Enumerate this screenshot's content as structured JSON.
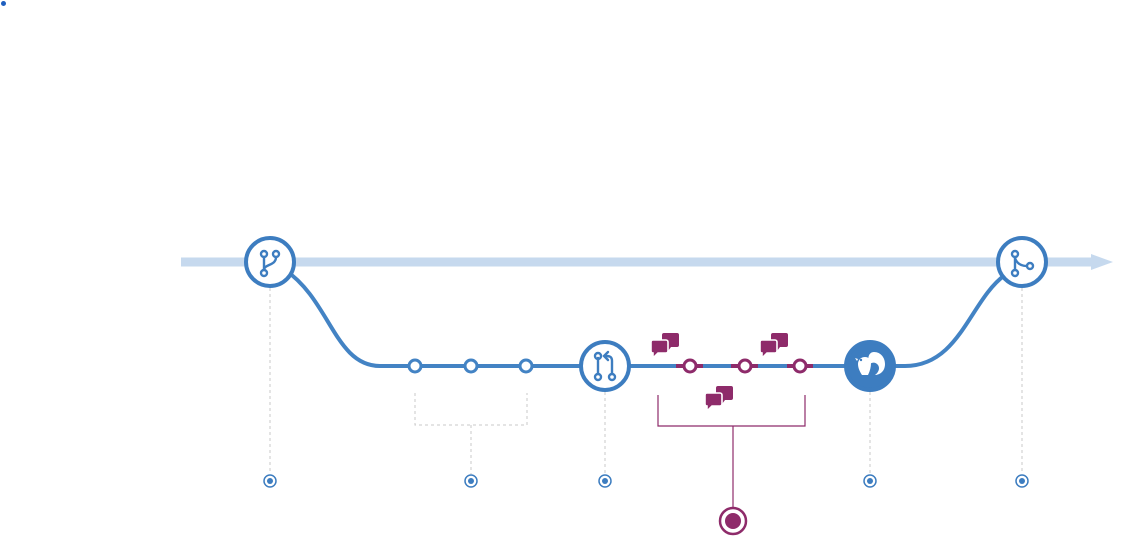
{
  "colors": {
    "main_line": "#c6d9ee",
    "flow_blue": "#4383c4",
    "stage_blue": "#3d7dc0",
    "review_purple": "#8e2b6a",
    "guide_gray": "#c8c8c8",
    "white": "#ffffff"
  },
  "diagram": {
    "stages": [
      {
        "key": "create-branch",
        "icon": "branch-icon"
      },
      {
        "key": "add-commits",
        "icon": "commit-dots"
      },
      {
        "key": "open-pull-request",
        "icon": "pull-request-icon"
      },
      {
        "key": "discuss-review",
        "icon": "comment-icon"
      },
      {
        "key": "deploy",
        "icon": "squirrel-icon"
      },
      {
        "key": "merge",
        "icon": "merge-icon"
      }
    ],
    "commit_count": 3,
    "review_commit_count": 3,
    "comment_bubble_count": 3
  }
}
